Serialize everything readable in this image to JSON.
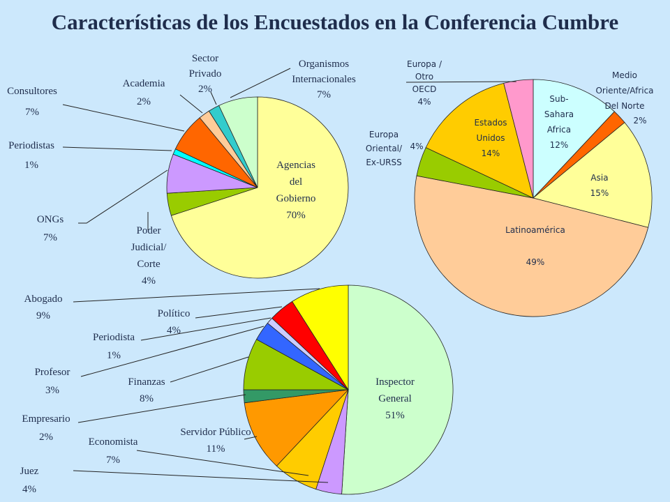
{
  "title": "Características de los Encuestados en la Conferencia Cumbre",
  "chart_data": [
    {
      "type": "pie",
      "id": "organizacion",
      "slices": [
        {
          "label": [
            "Agencias",
            "del",
            "Gobierno"
          ],
          "pct": "70%",
          "value": 70,
          "color": "#ffff99"
        },
        {
          "label": [
            "Poder",
            "Judicial/",
            "Corte"
          ],
          "pct": "4%",
          "value": 4,
          "color": "#99cc00"
        },
        {
          "label": [
            "ONGs"
          ],
          "pct": "7%",
          "value": 7,
          "color": "#cc99ff"
        },
        {
          "label": [
            "Periodistas"
          ],
          "pct": "1%",
          "value": 1,
          "color": "#00ffff"
        },
        {
          "label": [
            "Consultores"
          ],
          "pct": "7%",
          "value": 7,
          "color": "#ff6600"
        },
        {
          "label": [
            "Academia"
          ],
          "pct": "2%",
          "value": 2,
          "color": "#ffcc99"
        },
        {
          "label": [
            "Sector",
            "Privado"
          ],
          "pct": "2%",
          "value": 2,
          "color": "#33cccc"
        },
        {
          "label": [
            "Organismos",
            "Internacionales"
          ],
          "pct": "7%",
          "value": 7,
          "color": "#ccffcc"
        }
      ]
    },
    {
      "type": "pie",
      "id": "region",
      "slices": [
        {
          "label": [
            "Sub-",
            "Sahara",
            "Africa"
          ],
          "pct": "12%",
          "value": 12,
          "color": "#ccffff"
        },
        {
          "label": [
            "Medio",
            "Oriente/Africa",
            "Del Norte"
          ],
          "pct": "2%",
          "value": 2,
          "color": "#ff6600"
        },
        {
          "label": [
            "Asia"
          ],
          "pct": "15%",
          "value": 15,
          "color": "#ffff99"
        },
        {
          "label": [
            "Latinoamérica"
          ],
          "pct": "49%",
          "value": 49,
          "color": "#ffcc99"
        },
        {
          "label": [
            "Europa",
            "Oriental/",
            "Ex-URSS"
          ],
          "pct": "4%",
          "value": 4,
          "color": "#99cc00"
        },
        {
          "label": [
            "Estados",
            "Unidos"
          ],
          "pct": "14%",
          "value": 14,
          "color": "#ffcc00"
        },
        {
          "label": [
            "Europa /",
            "Otro",
            "OECD"
          ],
          "pct": "4%",
          "value": 4,
          "color": "#ff99cc"
        }
      ]
    },
    {
      "type": "pie",
      "id": "ocupacion",
      "slices": [
        {
          "label": [
            "Inspector",
            "General"
          ],
          "pct": "51%",
          "value": 51,
          "color": "#ccffcc"
        },
        {
          "label": [
            "Juez"
          ],
          "pct": "4%",
          "value": 4,
          "color": "#cc99ff"
        },
        {
          "label": [
            "Economista"
          ],
          "pct": "7%",
          "value": 7,
          "color": "#ffcc00"
        },
        {
          "label": [
            "Servidor Público"
          ],
          "pct": "11%",
          "value": 11,
          "color": "#ff9900"
        },
        {
          "label": [
            "Empresario"
          ],
          "pct": "2%",
          "value": 2,
          "color": "#339966"
        },
        {
          "label": [
            "Finanzas"
          ],
          "pct": "8%",
          "value": 8,
          "color": "#99cc00"
        },
        {
          "label": [
            "Profesor"
          ],
          "pct": "3%",
          "value": 3,
          "color": "#3366ff"
        },
        {
          "label": [
            "Periodista"
          ],
          "pct": "1%",
          "value": 1,
          "color": "#ccccff"
        },
        {
          "label": [
            "Político"
          ],
          "pct": "4%",
          "value": 4,
          "color": "#ff0000"
        },
        {
          "label": [
            "Abogado"
          ],
          "pct": "9%",
          "value": 9,
          "color": "#ffff00"
        }
      ]
    }
  ]
}
